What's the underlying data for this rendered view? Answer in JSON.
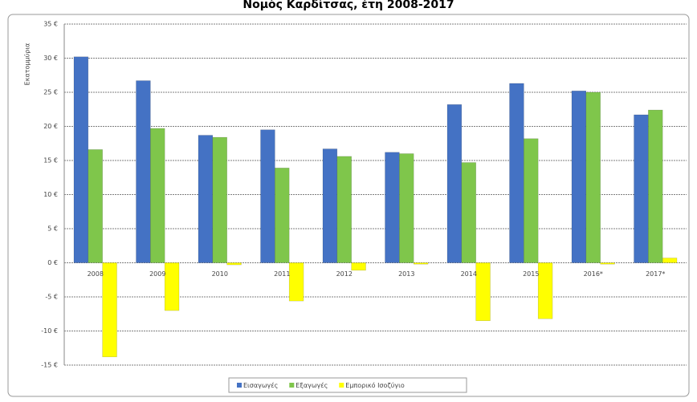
{
  "chart_data": {
    "type": "bar",
    "title": "Νομός Καρδίτσας, έτη 2008-2017",
    "y_label": "Εκατομμύρια",
    "categories": [
      "2008",
      "2009",
      "2010",
      "2011",
      "2012",
      "2013",
      "2014",
      "2015",
      "2016*",
      "2017*"
    ],
    "series": [
      {
        "name": "Εισαγωγές",
        "color": "#4472c4",
        "values": [
          30.2,
          26.7,
          18.7,
          19.5,
          16.7,
          16.2,
          23.2,
          26.3,
          25.2,
          21.7
        ]
      },
      {
        "name": "Εξαγωγές",
        "color": "#7fc64b",
        "values": [
          16.6,
          19.7,
          18.4,
          13.9,
          15.6,
          16.0,
          14.7,
          18.2,
          25.0,
          22.4
        ]
      },
      {
        "name": "Εμπορικό Ισοζύγιο",
        "color": "#ffff00",
        "values": [
          -13.8,
          -7.0,
          -0.3,
          -5.6,
          -1.1,
          -0.2,
          -8.5,
          -8.2,
          -0.2,
          0.7
        ]
      }
    ],
    "ylim": [
      -15,
      35
    ],
    "yticks": [
      {
        "value": -15,
        "label": "-15 €"
      },
      {
        "value": -10,
        "label": "-10 €"
      },
      {
        "value": -5,
        "label": "-5 €"
      },
      {
        "value": 0,
        "label": "0 €"
      },
      {
        "value": 5,
        "label": "5 €"
      },
      {
        "value": 10,
        "label": "10 €"
      },
      {
        "value": 15,
        "label": "15 €"
      },
      {
        "value": 20,
        "label": "20 €"
      },
      {
        "value": 25,
        "label": "25 €"
      },
      {
        "value": 30,
        "label": "30 €"
      },
      {
        "value": 35,
        "label": "35 €"
      }
    ],
    "grid": true,
    "legend": "bottom"
  }
}
